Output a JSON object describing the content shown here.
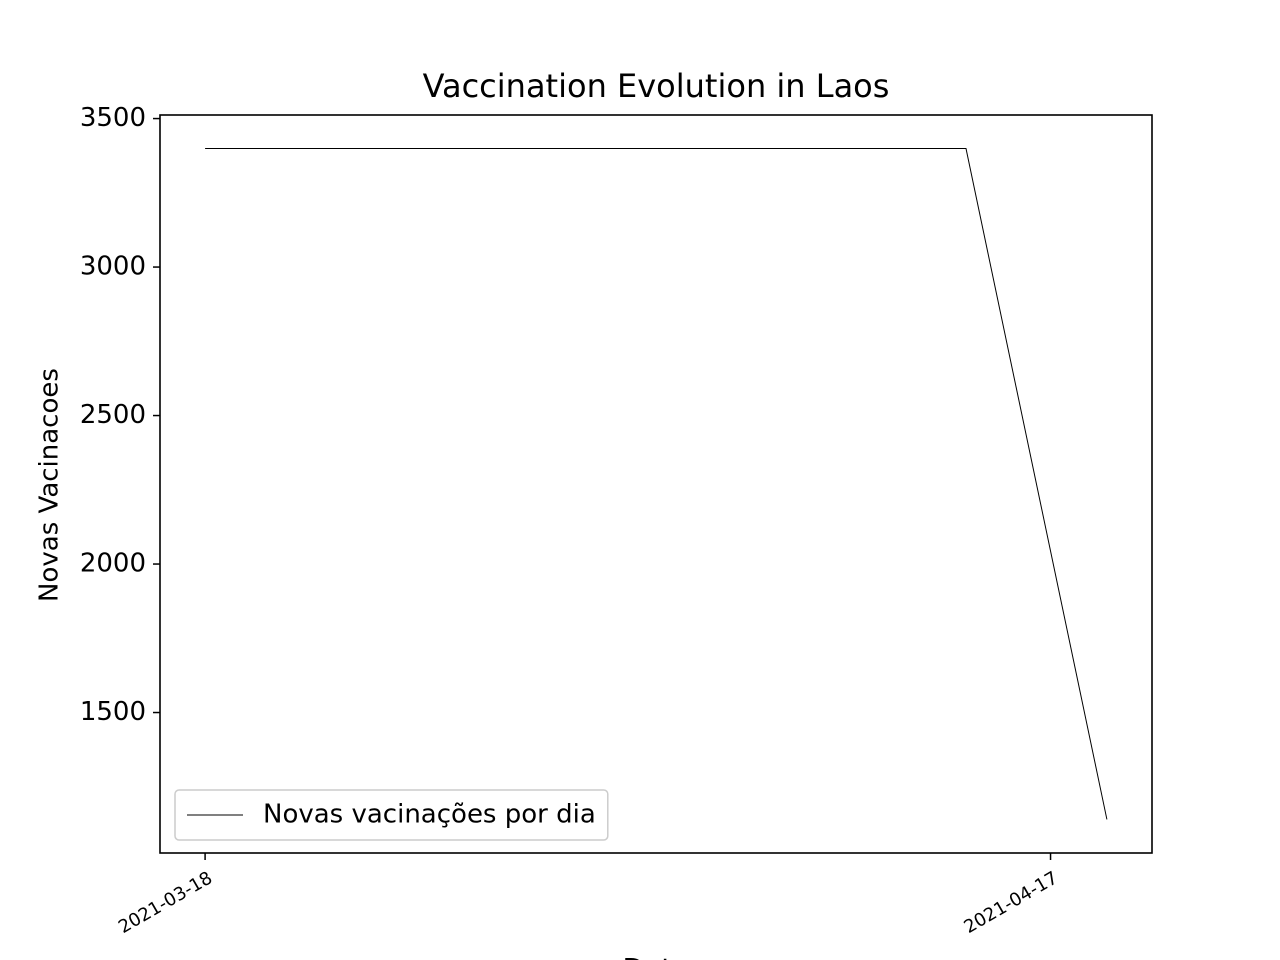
{
  "chart_data": {
    "type": "line",
    "title": "Vaccination Evolution in Laos",
    "xlabel": "Date",
    "ylabel": "Novas Vacinacoes",
    "x": [
      "2021-03-18",
      "2021-04-14",
      "2021-04-19"
    ],
    "series": [
      {
        "name": "Novas vacinações por dia",
        "color": "#000000",
        "values": [
          3399,
          3399,
          1140
        ]
      }
    ],
    "xlim": [
      "2021-03-16T09:36",
      "2021-04-20T14:24"
    ],
    "xticks": [
      "2021-03-18",
      "2021-04-17"
    ],
    "ylim": [
      1027,
      3512
    ],
    "yticks": [
      1500,
      2000,
      2500,
      3000,
      3500
    ],
    "legend": "lower left"
  }
}
